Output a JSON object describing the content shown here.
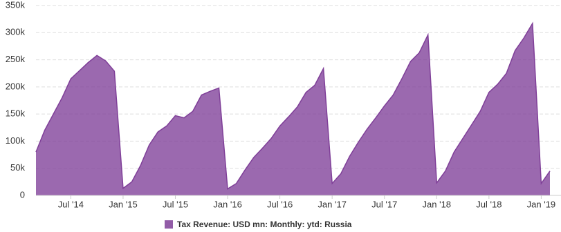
{
  "chart_data": {
    "type": "area",
    "x": [
      "2014-03",
      "2014-04",
      "2014-05",
      "2014-06",
      "2014-07",
      "2014-08",
      "2014-09",
      "2014-10",
      "2014-11",
      "2014-12",
      "2015-01",
      "2015-02",
      "2015-03",
      "2015-04",
      "2015-05",
      "2015-06",
      "2015-07",
      "2015-08",
      "2015-09",
      "2015-10",
      "2015-11",
      "2015-12",
      "2016-01",
      "2016-02",
      "2016-03",
      "2016-04",
      "2016-05",
      "2016-06",
      "2016-07",
      "2016-08",
      "2016-09",
      "2016-10",
      "2016-11",
      "2016-12",
      "2017-01",
      "2017-02",
      "2017-03",
      "2017-04",
      "2017-05",
      "2017-06",
      "2017-07",
      "2017-08",
      "2017-09",
      "2017-10",
      "2017-11",
      "2017-12",
      "2018-01",
      "2018-02",
      "2018-03",
      "2018-04",
      "2018-05",
      "2018-06",
      "2018-07",
      "2018-08",
      "2018-09",
      "2018-10",
      "2018-11",
      "2018-12",
      "2019-01",
      "2019-02"
    ],
    "series": [
      {
        "name": "Tax Revenue: USD mn: Monthly: ytd: Russia",
        "color": "#7f3f98",
        "values": [
          80000,
          120000,
          150000,
          180000,
          215000,
          230000,
          245000,
          258000,
          248000,
          229000,
          13000,
          25000,
          55000,
          93000,
          117000,
          128000,
          147000,
          143000,
          155000,
          185000,
          192000,
          198000,
          12000,
          22000,
          47000,
          70000,
          87000,
          105000,
          128000,
          145000,
          163000,
          190000,
          203000,
          234000,
          22000,
          40000,
          72000,
          98000,
          122000,
          143000,
          165000,
          185000,
          215000,
          247000,
          263000,
          296000,
          23000,
          45000,
          80000,
          105000,
          130000,
          155000,
          190000,
          205000,
          225000,
          267000,
          290000,
          317000,
          22000,
          45000
        ]
      }
    ],
    "xlim": [
      "2014-03",
      "2019-02"
    ],
    "xticks": [
      {
        "value": "2014-07",
        "label": "Jul '14"
      },
      {
        "value": "2015-01",
        "label": "Jan '15"
      },
      {
        "value": "2015-07",
        "label": "Jul '15"
      },
      {
        "value": "2016-01",
        "label": "Jan '16"
      },
      {
        "value": "2016-07",
        "label": "Jul '16"
      },
      {
        "value": "2017-01",
        "label": "Jan '17"
      },
      {
        "value": "2017-07",
        "label": "Jul '17"
      },
      {
        "value": "2018-01",
        "label": "Jan '18"
      },
      {
        "value": "2018-07",
        "label": "Jul '18"
      },
      {
        "value": "2019-01",
        "label": "Jan '19"
      }
    ],
    "ylim": [
      0,
      350000
    ],
    "yticks": [
      0,
      {
        "value": 50000,
        "label": "50k"
      },
      {
        "value": 100000,
        "label": "100k"
      },
      {
        "value": 150000,
        "label": "150k"
      },
      {
        "value": 200000,
        "label": "200k"
      },
      {
        "value": 250000,
        "label": "250k"
      },
      {
        "value": 300000,
        "label": "300k"
      },
      {
        "value": 350000,
        "label": "350k"
      }
    ],
    "grid": true
  }
}
